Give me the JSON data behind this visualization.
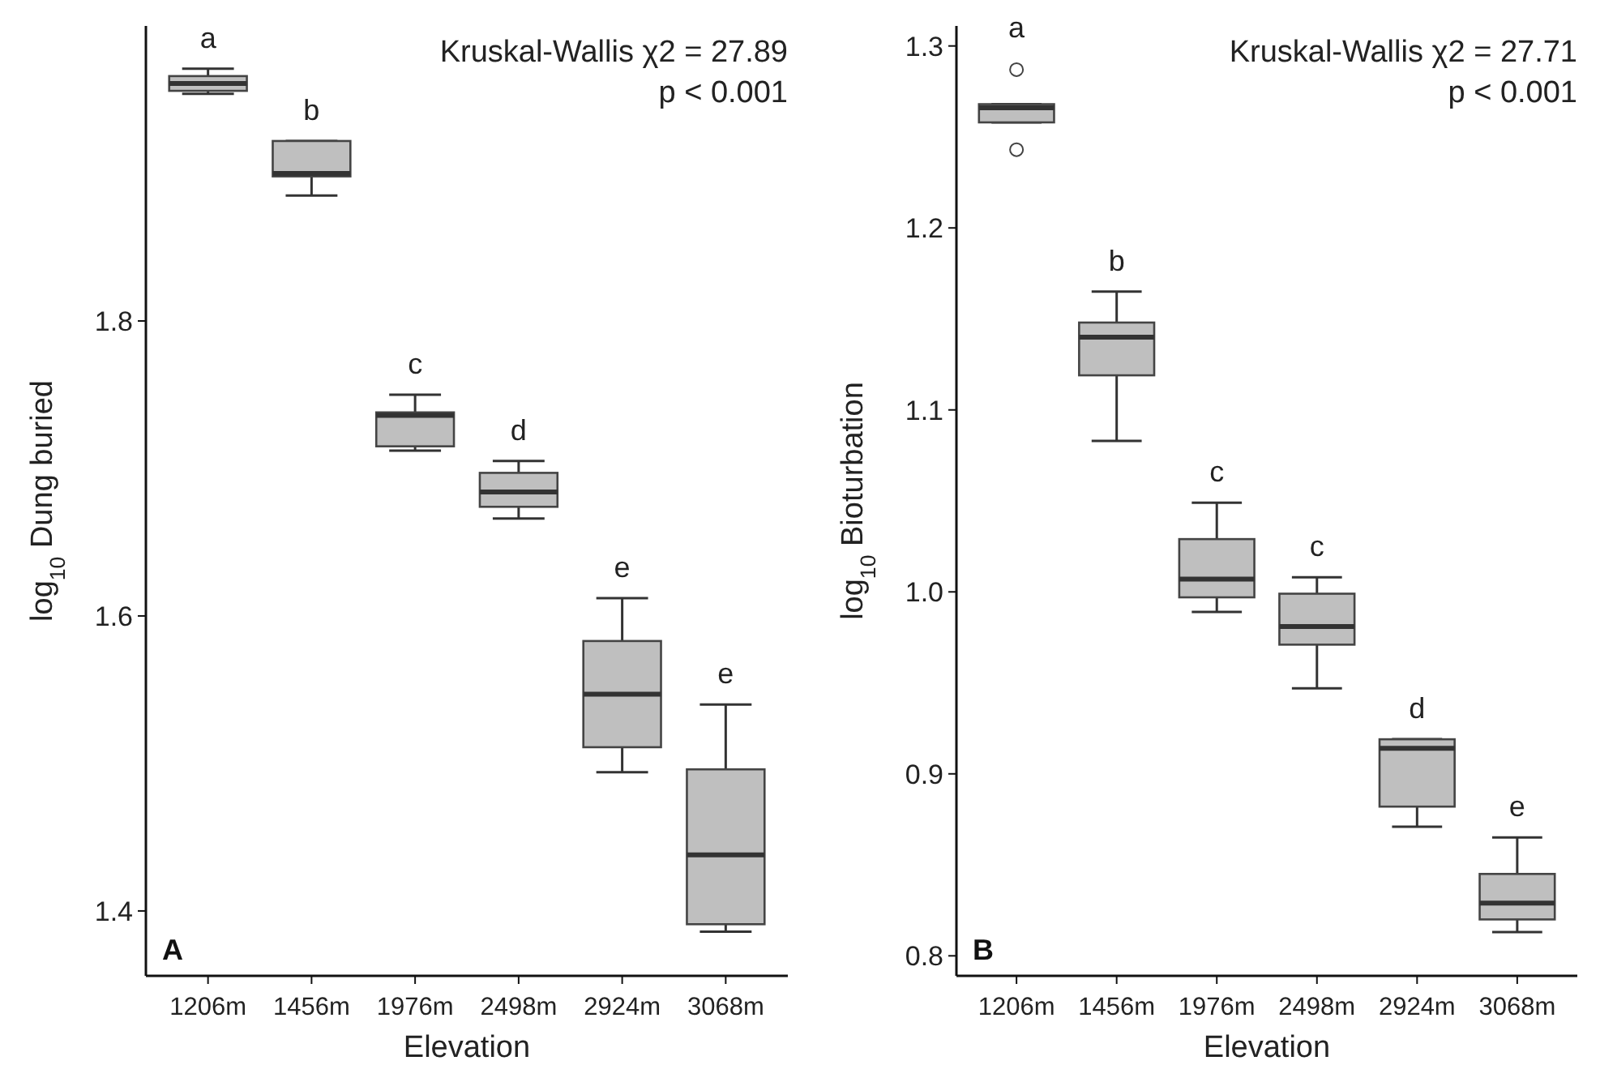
{
  "chart_data": [
    {
      "type": "box",
      "xlabel": "Elevation",
      "ylabel": "log$_{10}$ Dung buried",
      "categories": [
        "1206m",
        "1456m",
        "1976m",
        "2498m",
        "2924m",
        "3068m"
      ],
      "color": "#bfbfbf",
      "ylim": [
        1.356,
        2.0
      ],
      "yticks": [
        1.4,
        1.6,
        1.8
      ],
      "boxes": [
        {
          "low": 1.954,
          "q1": 1.956,
          "median": 1.961,
          "q3": 1.966,
          "high": 1.971
        },
        {
          "low": 1.885,
          "q1": 1.898,
          "median": 1.9,
          "q3": 1.922,
          "high": 1.922
        },
        {
          "low": 1.712,
          "q1": 1.715,
          "median": 1.736,
          "q3": 1.738,
          "high": 1.75
        },
        {
          "low": 1.666,
          "q1": 1.674,
          "median": 1.684,
          "q3": 1.697,
          "high": 1.705
        },
        {
          "low": 1.494,
          "q1": 1.511,
          "median": 1.547,
          "q3": 1.583,
          "high": 1.612
        },
        {
          "low": 1.386,
          "q1": 1.391,
          "median": 1.438,
          "q3": 1.496,
          "high": 1.54
        }
      ],
      "annotations": [
        "Kruskal-Wallis χ2 = 27.89",
        "p < 0.001",
        "A",
        "a",
        "b",
        "c",
        "d",
        "e",
        "e"
      ]
    },
    {
      "type": "box",
      "xlabel": "Elevation",
      "ylabel": "log$_{10}$ Bioturbation",
      "categories": [
        "1206m",
        "1456m",
        "1976m",
        "2498m",
        "2924m",
        "3068m"
      ],
      "color": "#bfbfbf",
      "ylim": [
        0.789,
        1.311
      ],
      "yticks": [
        0.8,
        0.9,
        {
          "value": 1,
          "label": "1.0"
        },
        1.1,
        1.2,
        1.3
      ],
      "boxes": [
        {
          "low": 1.258,
          "q1": 1.258,
          "median": 1.266,
          "q3": 1.268,
          "high": 1.268,
          "outliers": [
            1.287,
            1.243
          ]
        },
        {
          "low": 1.083,
          "q1": 1.119,
          "median": 1.14,
          "q3": 1.148,
          "high": 1.165
        },
        {
          "low": 0.989,
          "q1": 0.997,
          "median": 1.007,
          "q3": 1.029,
          "high": 1.049
        },
        {
          "low": 0.947,
          "q1": 0.971,
          "median": 0.981,
          "q3": 0.999,
          "high": 1.008
        },
        {
          "low": 0.871,
          "q1": 0.882,
          "median": 0.914,
          "q3": 0.919,
          "high": 0.919
        },
        {
          "low": 0.813,
          "q1": 0.82,
          "median": 0.829,
          "q3": 0.845,
          "high": 0.865
        }
      ],
      "annotations": [
        "Kruskal-Wallis χ2 = 27.71",
        "p < 0.001",
        "B",
        "a",
        "b",
        "c",
        "c",
        "d",
        "e"
      ]
    }
  ]
}
